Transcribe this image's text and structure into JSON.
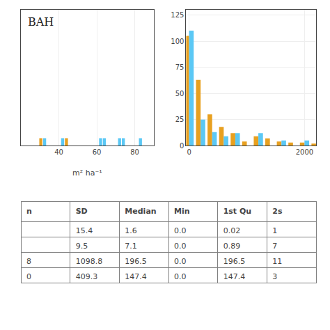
{
  "chart_data": [
    {
      "type": "bar",
      "title": "BAH",
      "x_label": "m² ha⁻¹",
      "x": [
        30.5,
        32.5,
        42.0,
        44.0,
        62.0,
        64.0,
        72.0,
        74.0,
        83.0
      ],
      "values": [
        0.28,
        0.28,
        0.28,
        0.28,
        0.28,
        0.28,
        0.28,
        0.28,
        0.28
      ],
      "colors": [
        "#E8A020",
        "#5BC8F5",
        "#5BC8F5",
        "#E8A020",
        "#5BC8F5",
        "#5BC8F5",
        "#5BC8F5",
        "#5BC8F5",
        "#5BC8F5"
      ],
      "xlim": [
        20,
        90
      ],
      "xticks": [
        40,
        60,
        80
      ],
      "ylim": [
        0,
        5
      ],
      "tick_labels": "x",
      "grid": true
    },
    {
      "type": "bar",
      "x": [
        0,
        200,
        400,
        600,
        800,
        1000,
        1200,
        1400,
        1600,
        1800,
        2000,
        2200
      ],
      "series": [
        {
          "color": "#E8A020",
          "values": [
            105,
            63,
            30,
            18,
            12,
            4,
            9,
            7,
            4,
            3,
            3,
            2
          ]
        },
        {
          "color": "#5BC8F5",
          "values": [
            110,
            25,
            13,
            9,
            12,
            0,
            12,
            0,
            5,
            0,
            5,
            0
          ]
        }
      ],
      "xlim": [
        -50,
        2200
      ],
      "xticks": [
        0,
        2000
      ],
      "ylim": [
        0,
        130
      ],
      "yticks": [
        0,
        25,
        50,
        75,
        100,
        125
      ],
      "grid": true
    },
    {
      "type": "table",
      "columns": [
        "n",
        "SD",
        "Median",
        "Min",
        "1st Qu",
        "2s"
      ],
      "rows": [
        [
          null,
          "15.4",
          "1.6",
          "0.0",
          "0.02",
          "1"
        ],
        [
          null,
          "9.5",
          "7.1",
          "0.0",
          "0.89",
          "7"
        ],
        [
          "8",
          "1098.8",
          "196.5",
          "0.0",
          "196.5",
          "11"
        ],
        [
          "0",
          "409.3",
          "147.4",
          "0.0",
          "147.4",
          "3"
        ]
      ]
    }
  ]
}
